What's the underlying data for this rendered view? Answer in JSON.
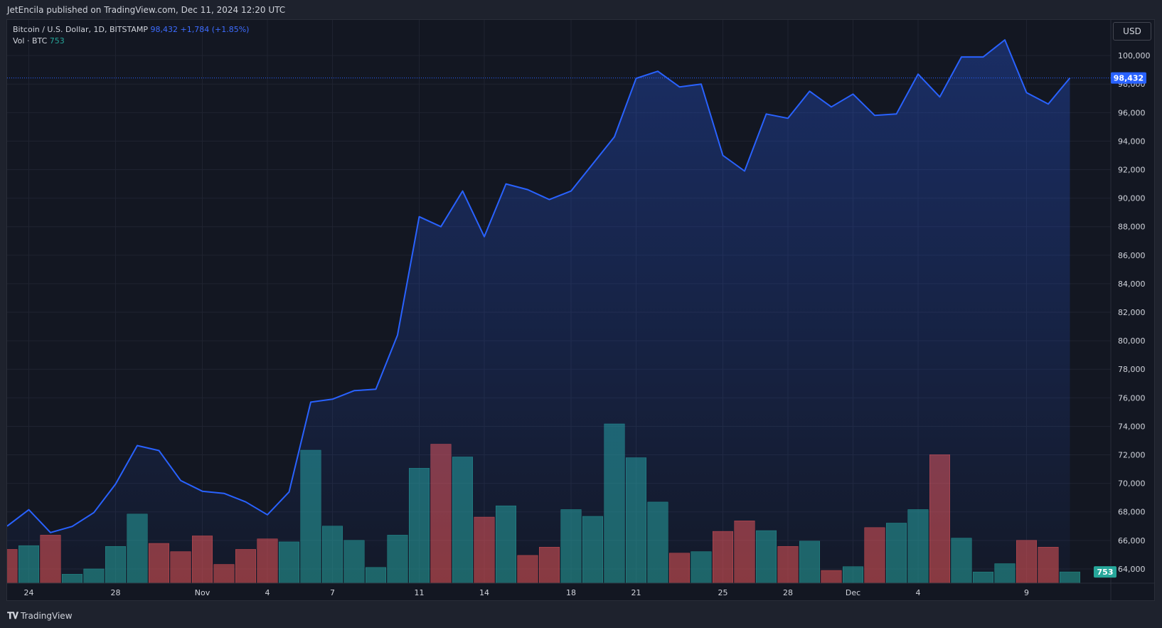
{
  "header": {
    "publisher_line": "JetEncila published on TradingView.com, Dec 11, 2024 12:20 UTC"
  },
  "legend": {
    "symbol": "Bitcoin / U.S. Dollar, 1D, BITSTAMP",
    "price": "98,432",
    "change": "+1,784 (+1.85%)",
    "volume_label": "Vol · BTC",
    "volume_value": "753"
  },
  "toolbar": {
    "currency_button": "USD"
  },
  "footer": {
    "brand": "TradingView",
    "logo_icon": "tv-logo-icon"
  },
  "colors": {
    "background": "#131722",
    "price_line": "#2962ff",
    "up_volume": "#26a69a",
    "down_volume": "#ef5350"
  },
  "chart_data": {
    "type": "area",
    "price_ylim": [
      63000,
      102500
    ],
    "y_ticks": [
      64000,
      66000,
      68000,
      70000,
      72000,
      74000,
      76000,
      78000,
      80000,
      82000,
      84000,
      86000,
      88000,
      90000,
      92000,
      94000,
      96000,
      98000,
      100000
    ],
    "y_tick_labels": [
      "64,000",
      "66,000",
      "68,000",
      "70,000",
      "72,000",
      "74,000",
      "76,000",
      "78,000",
      "80,000",
      "82,000",
      "84,000",
      "86,000",
      "88,000",
      "90,000",
      "92,000",
      "94,000",
      "96,000",
      "98,000",
      "100,000"
    ],
    "x_ticks": [
      {
        "index": 1,
        "label": "24"
      },
      {
        "index": 5,
        "label": "28"
      },
      {
        "index": 9,
        "label": "Nov"
      },
      {
        "index": 12,
        "label": "4"
      },
      {
        "index": 15,
        "label": "7"
      },
      {
        "index": 19,
        "label": "11"
      },
      {
        "index": 22,
        "label": "14"
      },
      {
        "index": 26,
        "label": "18"
      },
      {
        "index": 29,
        "label": "21"
      },
      {
        "index": 33,
        "label": "25"
      },
      {
        "index": 36,
        "label": "28"
      },
      {
        "index": 39,
        "label": "Dec"
      },
      {
        "index": 42,
        "label": "4"
      },
      {
        "index": 47,
        "label": "9"
      }
    ],
    "last_price": 98432,
    "last_price_label": "98,432",
    "last_volume_label": "753",
    "price": [
      67000,
      68150,
      66550,
      66980,
      67950,
      69950,
      72650,
      72300,
      70200,
      69450,
      69300,
      68700,
      67800,
      69400,
      75700,
      75900,
      76500,
      76600,
      80400,
      88700,
      88000,
      90500,
      87300,
      91000,
      90600,
      89900,
      90500,
      92400,
      94300,
      98400,
      98900,
      97800,
      98000,
      93000,
      91900,
      95900,
      95600,
      97500,
      96400,
      97300,
      95800,
      95900,
      98700,
      97100,
      99900,
      99900,
      101100,
      97400,
      96600,
      98432
    ],
    "volume": [
      {
        "v": 2250,
        "dir": "down"
      },
      {
        "v": 2500,
        "dir": "up"
      },
      {
        "v": 3200,
        "dir": "down"
      },
      {
        "v": 600,
        "dir": "up"
      },
      {
        "v": 950,
        "dir": "up"
      },
      {
        "v": 2450,
        "dir": "up"
      },
      {
        "v": 4600,
        "dir": "up"
      },
      {
        "v": 2650,
        "dir": "down"
      },
      {
        "v": 2100,
        "dir": "down"
      },
      {
        "v": 3150,
        "dir": "down"
      },
      {
        "v": 1250,
        "dir": "down"
      },
      {
        "v": 2250,
        "dir": "down"
      },
      {
        "v": 2950,
        "dir": "down"
      },
      {
        "v": 2750,
        "dir": "up"
      },
      {
        "v": 8850,
        "dir": "up"
      },
      {
        "v": 3800,
        "dir": "up"
      },
      {
        "v": 2850,
        "dir": "up"
      },
      {
        "v": 1050,
        "dir": "up"
      },
      {
        "v": 3200,
        "dir": "up"
      },
      {
        "v": 7650,
        "dir": "up"
      },
      {
        "v": 9250,
        "dir": "down"
      },
      {
        "v": 8400,
        "dir": "up"
      },
      {
        "v": 4400,
        "dir": "down"
      },
      {
        "v": 5150,
        "dir": "up"
      },
      {
        "v": 1850,
        "dir": "down"
      },
      {
        "v": 2400,
        "dir": "down"
      },
      {
        "v": 4900,
        "dir": "up"
      },
      {
        "v": 4450,
        "dir": "up"
      },
      {
        "v": 10600,
        "dir": "up"
      },
      {
        "v": 8350,
        "dir": "up"
      },
      {
        "v": 5400,
        "dir": "up"
      },
      {
        "v": 2000,
        "dir": "down"
      },
      {
        "v": 2100,
        "dir": "up"
      },
      {
        "v": 3450,
        "dir": "down"
      },
      {
        "v": 4150,
        "dir": "down"
      },
      {
        "v": 3500,
        "dir": "up"
      },
      {
        "v": 2450,
        "dir": "down"
      },
      {
        "v": 2800,
        "dir": "up"
      },
      {
        "v": 850,
        "dir": "down"
      },
      {
        "v": 1100,
        "dir": "up"
      },
      {
        "v": 3700,
        "dir": "down"
      },
      {
        "v": 4000,
        "dir": "up"
      },
      {
        "v": 4900,
        "dir": "up"
      },
      {
        "v": 8550,
        "dir": "down"
      },
      {
        "v": 3000,
        "dir": "up"
      },
      {
        "v": 750,
        "dir": "up"
      },
      {
        "v": 1300,
        "dir": "up"
      },
      {
        "v": 2850,
        "dir": "down"
      },
      {
        "v": 2400,
        "dir": "down"
      },
      {
        "v": 753,
        "dir": "up"
      }
    ]
  }
}
